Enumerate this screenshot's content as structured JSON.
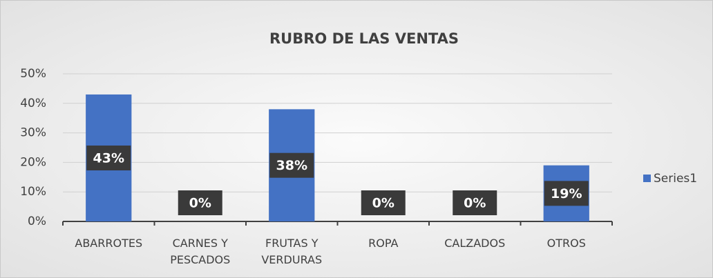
{
  "chart_data": {
    "type": "bar",
    "title": "RUBRO DE LAS VENTAS",
    "categories": [
      "ABARROTES",
      "CARNES Y PESCADOS",
      "FRUTAS Y VERDURAS",
      "ROPA",
      "CALZADOS",
      "OTROS"
    ],
    "series": [
      {
        "name": "Series1",
        "color": "#4472c4",
        "values": [
          43,
          0,
          38,
          0,
          0,
          19
        ],
        "value_labels": [
          "43%",
          "0%",
          "38%",
          "0%",
          "0%",
          "19%"
        ]
      }
    ],
    "ylim": [
      0,
      50
    ],
    "yticks": [
      {
        "value": 0,
        "label": "0%"
      },
      {
        "value": 10,
        "label": "10%"
      },
      {
        "value": 20,
        "label": "20%"
      },
      {
        "value": 30,
        "label": "30%"
      },
      {
        "value": 40,
        "label": "40%"
      },
      {
        "value": 50,
        "label": "50%"
      }
    ],
    "grid": true,
    "legend": "right"
  }
}
